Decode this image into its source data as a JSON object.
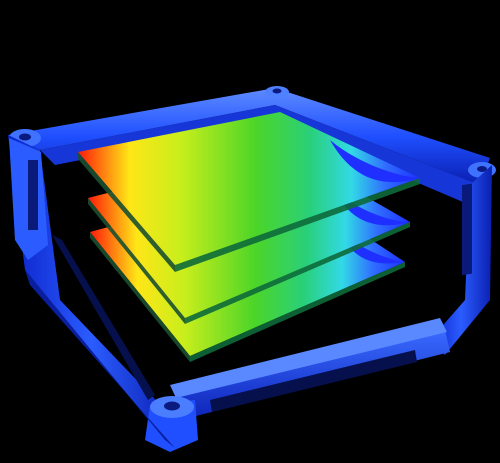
{
  "scene": {
    "background": "#000000",
    "enclosure_color": "#1f4fff",
    "enclosure_dark": "#0a1fb0",
    "enclosure_light": "#5f8cff",
    "plate_count": 3,
    "heatmap_palette": [
      "#ff1a0a",
      "#ff7a10",
      "#ffe617",
      "#c8ee1c",
      "#4cd528",
      "#29d07a",
      "#32d9e6",
      "#2f6dff",
      "#1f2fff"
    ]
  }
}
